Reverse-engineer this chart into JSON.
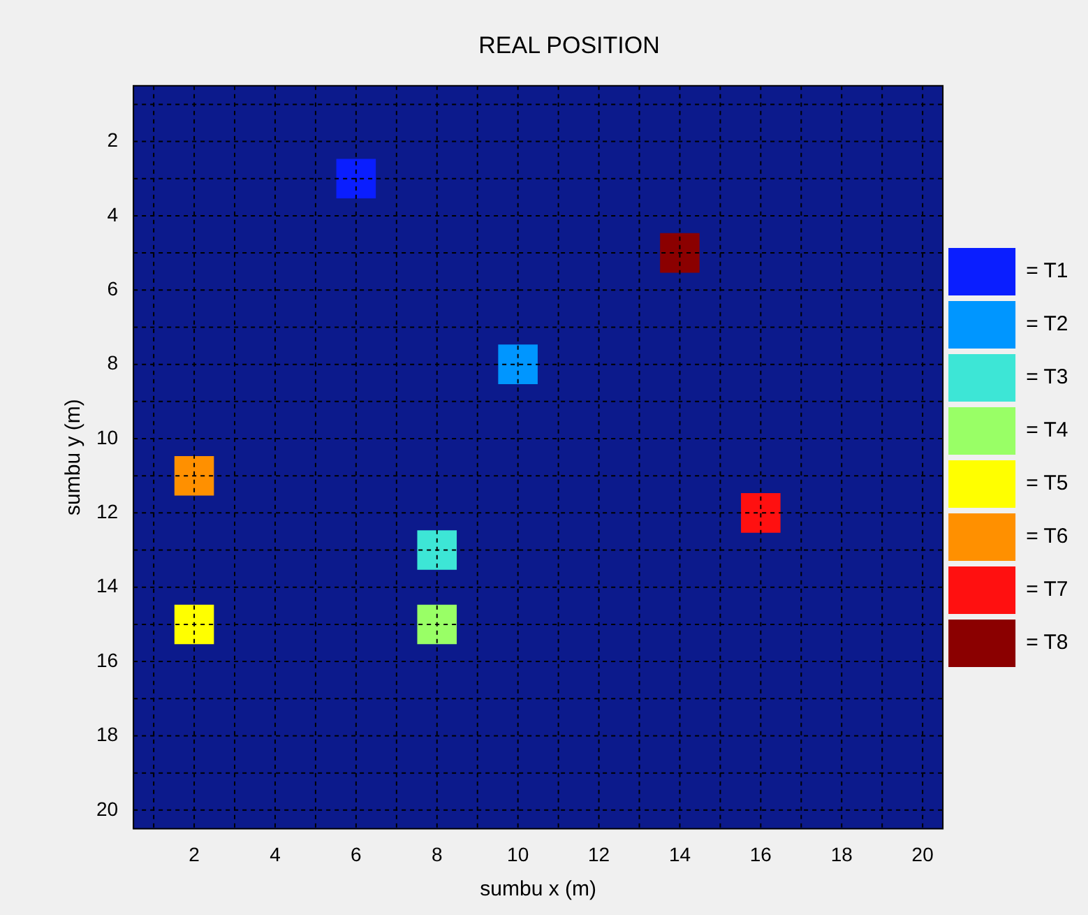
{
  "chart_data": {
    "type": "scatter",
    "title": "REAL POSITION",
    "xlabel": "sumbu x (m)",
    "ylabel": "sumbu y (m)",
    "marker": "square",
    "grid": true,
    "legend": "right",
    "xlim": [
      0.5,
      20.5
    ],
    "ylim": [
      20.5,
      0.5
    ],
    "xticks": [
      {
        "value": 1,
        "label": null
      },
      2,
      {
        "value": 3,
        "label": null
      },
      4,
      {
        "value": 5,
        "label": null
      },
      6,
      {
        "value": 7,
        "label": null
      },
      8,
      {
        "value": 9,
        "label": null
      },
      10,
      {
        "value": 11,
        "label": null
      },
      12,
      {
        "value": 13,
        "label": null
      },
      14,
      {
        "value": 15,
        "label": null
      },
      16,
      {
        "value": 17,
        "label": null
      },
      18,
      {
        "value": 19,
        "label": null
      },
      20
    ],
    "yticks": [
      {
        "value": 1,
        "label": null
      },
      2,
      {
        "value": 3,
        "label": null
      },
      4,
      {
        "value": 5,
        "label": null
      },
      6,
      {
        "value": 7,
        "label": null
      },
      8,
      {
        "value": 9,
        "label": null
      },
      10,
      {
        "value": 11,
        "label": null
      },
      12,
      {
        "value": 13,
        "label": null
      },
      14,
      {
        "value": 15,
        "label": null
      },
      16,
      {
        "value": 17,
        "label": null
      },
      18,
      {
        "value": 19,
        "label": null
      },
      20
    ],
    "series": [
      {
        "name": "= T1",
        "color": "#0a1eff",
        "x": [
          6
        ],
        "values": [
          3
        ]
      },
      {
        "name": "= T2",
        "color": "#0096ff",
        "x": [
          10
        ],
        "values": [
          8
        ]
      },
      {
        "name": "= T3",
        "color": "#3de6d6",
        "x": [
          8
        ],
        "values": [
          13
        ]
      },
      {
        "name": "= T4",
        "color": "#99ff66",
        "x": [
          8
        ],
        "values": [
          15
        ]
      },
      {
        "name": "= T5",
        "color": "#ffff00",
        "x": [
          2
        ],
        "values": [
          15
        ]
      },
      {
        "name": "= T6",
        "color": "#ff9000",
        "x": [
          2
        ],
        "values": [
          11
        ]
      },
      {
        "name": "= T7",
        "color": "#ff1010",
        "x": [
          16
        ],
        "values": [
          12
        ]
      },
      {
        "name": "= T8",
        "color": "#8b0000",
        "x": [
          14
        ],
        "values": [
          5
        ]
      }
    ]
  }
}
